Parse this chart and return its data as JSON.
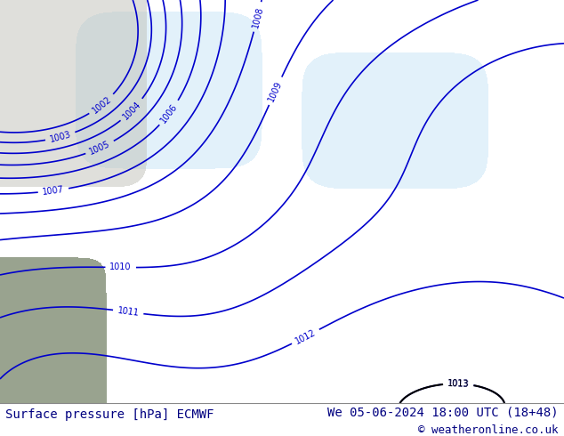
{
  "title_left": "Surface pressure [hPa] ECMWF",
  "title_right": "We 05-06-2024 18:00 UTC (18+48)",
  "copyright": "© weatheronline.co.uk",
  "bg_color": "#c8e6a0",
  "contour_color_blue": "#0000cc",
  "contour_color_red": "#cc0000",
  "contour_color_black": "#000000",
  "footer_text_color": "#000080",
  "font_size_footer": 10,
  "font_size_labels": 7
}
